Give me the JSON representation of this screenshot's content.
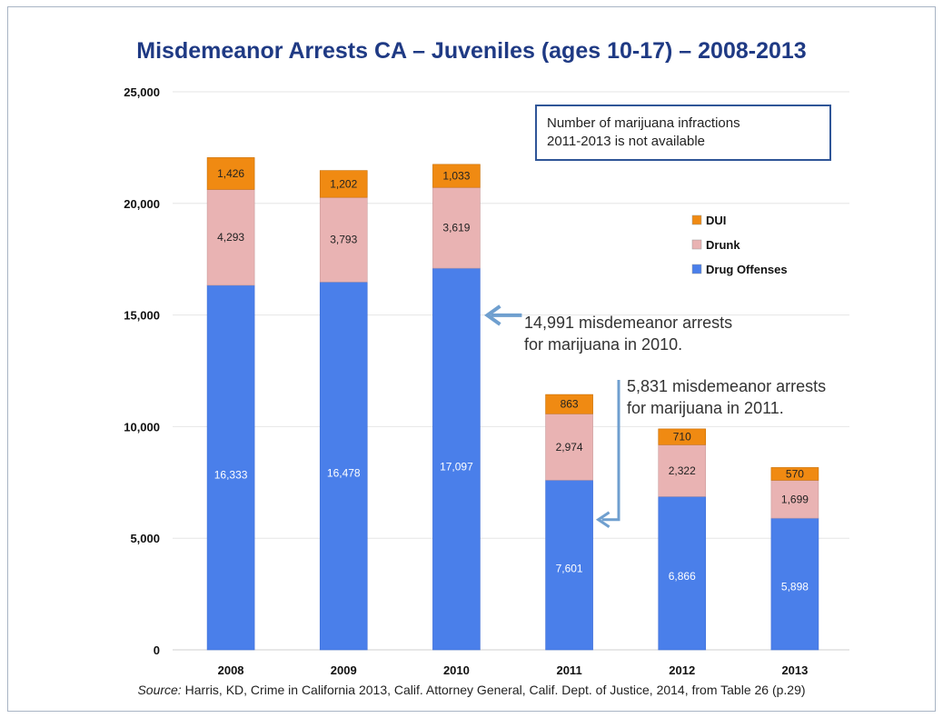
{
  "chart_data": {
    "type": "bar",
    "stacked": true,
    "title": "Misdemeanor Arrests CA – Juveniles (ages 10-17) – 2008-2013",
    "categories": [
      "2008",
      "2009",
      "2010",
      "2011",
      "2012",
      "2013"
    ],
    "series": [
      {
        "name": "Drug Offenses",
        "color": "#4a7fea",
        "values": [
          16333,
          16478,
          17097,
          7601,
          6866,
          5898
        ],
        "labels": [
          "16,333",
          "16,478",
          "17,097",
          "7,601",
          "6,866",
          "5,898"
        ]
      },
      {
        "name": "Drunk",
        "color": "#e9b3b3",
        "values": [
          4293,
          3793,
          3619,
          2974,
          2322,
          1699
        ],
        "labels": [
          "4,293",
          "3,793",
          "3,619",
          "2,974",
          "2,322",
          "1,699"
        ]
      },
      {
        "name": "DUI",
        "color": "#f08a12",
        "values": [
          1426,
          1202,
          1033,
          863,
          710,
          570
        ],
        "labels": [
          "1,426",
          "1,202",
          "1,033",
          "863",
          "710",
          "570"
        ]
      }
    ],
    "ylim": [
      0,
      25000
    ],
    "yticks": [
      0,
      5000,
      10000,
      15000,
      20000,
      25000
    ],
    "ytick_labels": [
      "0",
      "5,000",
      "10,000",
      "15,000",
      "20,000",
      "25,000"
    ],
    "xlabel": "",
    "ylabel": "",
    "grid": true,
    "legend": {
      "position": "right",
      "order": [
        "DUI",
        "Drunk",
        "Drug Offenses"
      ]
    }
  },
  "note_box": {
    "line1": "Number of marijuana infractions",
    "line2": "2011-2013 is not available"
  },
  "annotations": {
    "a2010": {
      "line1": "14,991 misdemeanor arrests",
      "line2": "for marijuana in 2010.",
      "target_category": "2010",
      "target_value": 14991
    },
    "a2011": {
      "line1": "5,831 misdemeanor arrests",
      "line2": "for marijuana in 2011.",
      "target_category": "2011",
      "target_value": 5831
    }
  },
  "source": {
    "label": "Source:",
    "text": " Harris, KD, Crime in California 2013, Calif. Attorney General, Calif. Dept. of Justice, 2014, from Table 26 (p.29)"
  },
  "colors": {
    "title": "#1f3a84",
    "annotation_arrow": "#6f9fcf",
    "note_border": "#2f5597"
  }
}
